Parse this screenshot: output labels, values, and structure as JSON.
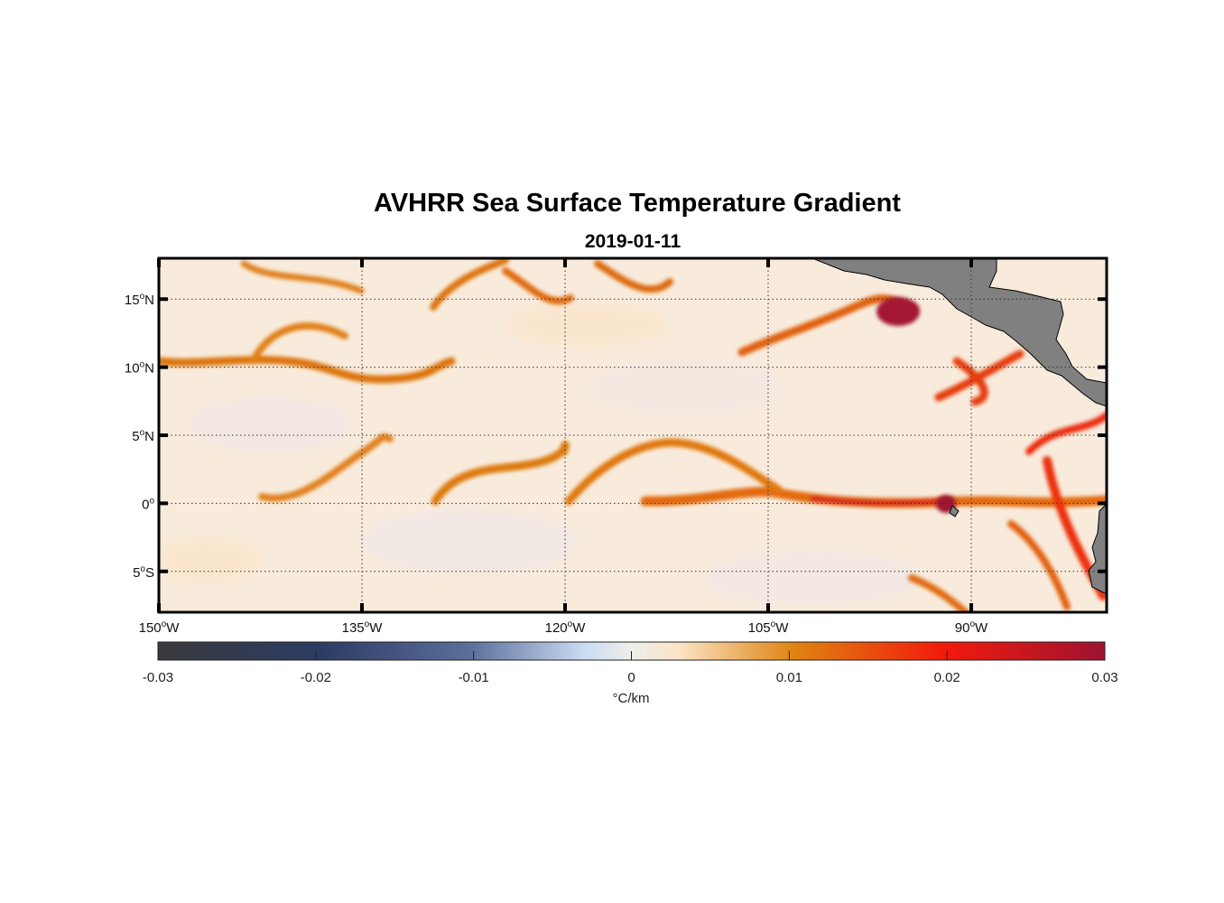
{
  "title": "AVHRR Sea Surface Temperature Gradient",
  "subtitle": "2019-01-11",
  "chart_data": {
    "type": "heatmap",
    "title": "AVHRR Sea Surface Temperature Gradient",
    "subtitle": "2019-01-11",
    "lon_range": [
      -150,
      -80
    ],
    "lat_range": [
      -8,
      18
    ],
    "grid": true,
    "x_ticks": [
      {
        "value": -150,
        "num": "150",
        "hem": "W"
      },
      {
        "value": -135,
        "num": "135",
        "hem": "W"
      },
      {
        "value": -120,
        "num": "120",
        "hem": "W"
      },
      {
        "value": -105,
        "num": "105",
        "hem": "W"
      },
      {
        "value": -90,
        "num": "90",
        "hem": "W"
      }
    ],
    "y_ticks": [
      {
        "value": 15,
        "num": "15",
        "hem": "N"
      },
      {
        "value": 10,
        "num": "10",
        "hem": "N"
      },
      {
        "value": 5,
        "num": "5",
        "hem": "N"
      },
      {
        "value": 0,
        "num": "0",
        "hem": ""
      },
      {
        "value": -5,
        "num": "5",
        "hem": "S"
      }
    ],
    "colorbar": {
      "range": [
        -0.03,
        0.03
      ],
      "ticks": [
        -0.03,
        -0.02,
        -0.01,
        0,
        0.01,
        0.02,
        0.03
      ],
      "tick_labels": [
        "-0.03",
        "-0.02",
        "-0.01",
        "0",
        "0.01",
        "0.02",
        "0.03"
      ],
      "label": "°C/km",
      "colors": [
        "#3a3a3c",
        "#2b3b62",
        "#5b6f9c",
        "#c9dcf2",
        "#efeeea",
        "#fbe4c6",
        "#df8512",
        "#f21a0c",
        "#9e1332"
      ]
    },
    "land_color": "#808080"
  },
  "degree_symbol": "o"
}
